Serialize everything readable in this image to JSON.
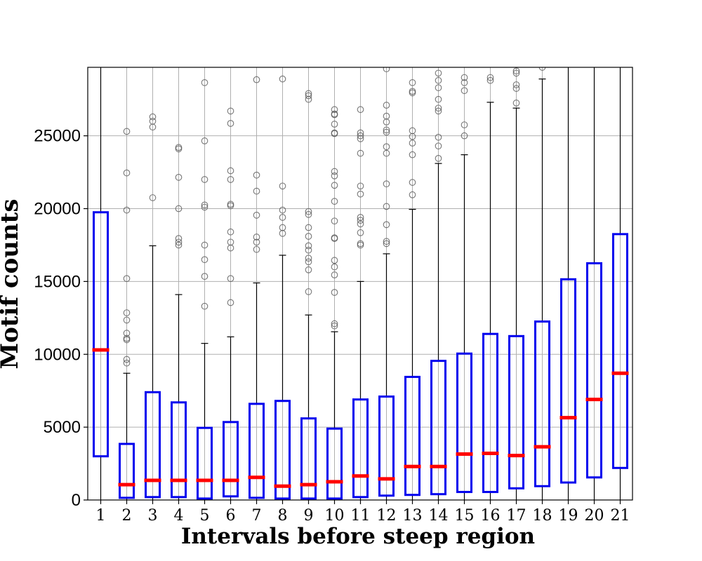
{
  "chart_data": {
    "type": "box",
    "xlabel": "Intervals before steep region",
    "ylabel": "Motif counts",
    "ylim": [
      0,
      29700
    ],
    "yticks": [
      0,
      5000,
      10000,
      15000,
      20000,
      25000
    ],
    "grid": true,
    "colors": {
      "box": "#0000ee",
      "median": "#ff0000",
      "whisker": "#000000",
      "flier": "#555555",
      "grid": "#b0b0b0"
    },
    "categories": [
      "1",
      "2",
      "3",
      "4",
      "5",
      "6",
      "7",
      "8",
      "9",
      "10",
      "11",
      "12",
      "13",
      "14",
      "15",
      "16",
      "17",
      "18",
      "19",
      "20",
      "21"
    ],
    "boxes": [
      {
        "q1": 3000,
        "median": 10300,
        "q3": 19750,
        "whislo": 0,
        "whishi": 30000,
        "fliers": []
      },
      {
        "q1": 150,
        "median": 1050,
        "q3": 3850,
        "whislo": 0,
        "whishi": 8700,
        "fliers": [
          9400,
          9650,
          11000,
          11100,
          11450,
          12350,
          12850,
          15200,
          19900,
          22450,
          25300
        ]
      },
      {
        "q1": 200,
        "median": 1350,
        "q3": 7400,
        "whislo": 0,
        "whishi": 17450,
        "fliers": [
          20750,
          25600,
          26000,
          26300
        ]
      },
      {
        "q1": 200,
        "median": 1350,
        "q3": 6700,
        "whislo": 0,
        "whishi": 14100,
        "fliers": [
          17500,
          17700,
          17950,
          20000,
          22150,
          24100,
          24200
        ]
      },
      {
        "q1": 100,
        "median": 1350,
        "q3": 4950,
        "whislo": 0,
        "whishi": 10750,
        "fliers": [
          13300,
          15350,
          16500,
          17500,
          20100,
          20250,
          22000,
          24650,
          28650
        ]
      },
      {
        "q1": 250,
        "median": 1350,
        "q3": 5350,
        "whislo": 0,
        "whishi": 11200,
        "fliers": [
          13550,
          15200,
          17300,
          17700,
          18400,
          20200,
          20300,
          22000,
          22600,
          25850,
          26700
        ]
      },
      {
        "q1": 150,
        "median": 1550,
        "q3": 6600,
        "whislo": 0,
        "whishi": 14900,
        "fliers": [
          17200,
          17700,
          18050,
          19550,
          21200,
          22300,
          28850
        ]
      },
      {
        "q1": 100,
        "median": 950,
        "q3": 6800,
        "whislo": 0,
        "whishi": 16800,
        "fliers": [
          18300,
          18700,
          19400,
          19900,
          21550,
          28900
        ]
      },
      {
        "q1": 100,
        "median": 1050,
        "q3": 5600,
        "whislo": 0,
        "whishi": 12700,
        "fliers": [
          14300,
          15800,
          16350,
          16600,
          17150,
          17450,
          18100,
          18700,
          19600,
          19800,
          27500,
          27750,
          27900
        ]
      },
      {
        "q1": 100,
        "median": 1250,
        "q3": 4900,
        "whislo": 0,
        "whishi": 11550,
        "fliers": [
          11950,
          12100,
          14250,
          15450,
          16000,
          16450,
          17950,
          18000,
          19150,
          20500,
          21600,
          22250,
          22550,
          25150,
          25200,
          25800,
          26450,
          26500,
          26800
        ]
      },
      {
        "q1": 200,
        "median": 1650,
        "q3": 6900,
        "whislo": 0,
        "whishi": 15000,
        "fliers": [
          17500,
          17600,
          18350,
          18950,
          19200,
          19400,
          21000,
          21550,
          23800,
          24800,
          25000,
          25200,
          26800
        ]
      },
      {
        "q1": 300,
        "median": 1450,
        "q3": 7100,
        "whislo": 0,
        "whishi": 16900,
        "fliers": [
          17600,
          17750,
          18900,
          20150,
          21700,
          23800,
          24250,
          25250,
          25400,
          25950,
          26350,
          27100,
          29600
        ]
      },
      {
        "q1": 350,
        "median": 2300,
        "q3": 8450,
        "whislo": 0,
        "whishi": 19950,
        "fliers": [
          20950,
          21800,
          23700,
          24500,
          24950,
          25350,
          27950,
          28050,
          28650
        ]
      },
      {
        "q1": 400,
        "median": 2300,
        "q3": 9550,
        "whislo": 0,
        "whishi": 23100,
        "fliers": [
          23450,
          24300,
          24900,
          26700,
          26900,
          27500,
          28300,
          28800,
          29300
        ]
      },
      {
        "q1": 550,
        "median": 3150,
        "q3": 10050,
        "whislo": 0,
        "whishi": 23700,
        "fliers": [
          25000,
          25750,
          28100,
          28650,
          29000
        ]
      },
      {
        "q1": 550,
        "median": 3200,
        "q3": 11400,
        "whislo": 0,
        "whishi": 27300,
        "fliers": [
          28800,
          29000
        ]
      },
      {
        "q1": 800,
        "median": 3050,
        "q3": 11250,
        "whislo": 0,
        "whishi": 26900,
        "fliers": [
          27250,
          28250,
          28500,
          29300,
          29450
        ]
      },
      {
        "q1": 950,
        "median": 3650,
        "q3": 12250,
        "whislo": 0,
        "whishi": 28900,
        "fliers": [
          29700
        ]
      },
      {
        "q1": 1200,
        "median": 5650,
        "q3": 15150,
        "whislo": 0,
        "whishi": 30000,
        "fliers": []
      },
      {
        "q1": 1550,
        "median": 6900,
        "q3": 16250,
        "whislo": 0,
        "whishi": 30000,
        "fliers": []
      },
      {
        "q1": 2200,
        "median": 8700,
        "q3": 18250,
        "whislo": 0,
        "whishi": 30000,
        "fliers": []
      }
    ]
  }
}
